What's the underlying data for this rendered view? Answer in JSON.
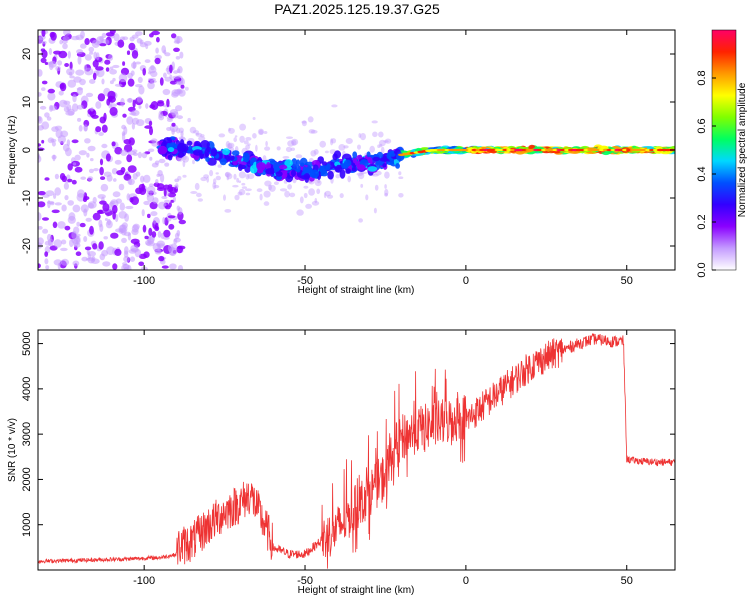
{
  "title": "PAZ1.2025.125.19.37.G25",
  "chart_data": [
    {
      "type": "heatmap",
      "xlabel": "Height of straight line (km)",
      "ylabel": "Frequency (Hz)",
      "xlim": [
        -133,
        65
      ],
      "ylim": [
        -25,
        25
      ],
      "xticks": [
        -100,
        -50,
        0,
        50
      ],
      "yticks": [
        20,
        10,
        0,
        -10,
        -20
      ],
      "colorbar": {
        "label": "Normalized spectral amplitude",
        "range": [
          0.0,
          1.0
        ],
        "ticks": [
          0.0,
          0.2,
          0.4,
          0.6,
          0.8
        ],
        "colors": [
          "#ffffff",
          "#c49bff",
          "#8a00ff",
          "#3300ff",
          "#0050ff",
          "#00d8ff",
          "#00ff60",
          "#80ff00",
          "#ffff00",
          "#ff9900",
          "#ff2200",
          "#ff0066"
        ]
      },
      "ridge": [
        {
          "x": -90,
          "f": 0.5
        },
        {
          "x": -80,
          "f": -0.5
        },
        {
          "x": -70,
          "f": -2.5
        },
        {
          "x": -60,
          "f": -4
        },
        {
          "x": -50,
          "f": -4.5
        },
        {
          "x": -40,
          "f": -3
        },
        {
          "x": -30,
          "f": -3
        },
        {
          "x": -20,
          "f": -1
        },
        {
          "x": -10,
          "f": 0
        },
        {
          "x": 0,
          "f": 0
        },
        {
          "x": 20,
          "f": 0
        },
        {
          "x": 40,
          "f": 0
        },
        {
          "x": 65,
          "f": 0
        }
      ]
    },
    {
      "type": "line",
      "xlabel": "Height of straight line (km)",
      "ylabel": "SNR (10 * v/v)",
      "xlim": [
        -133,
        65
      ],
      "ylim": [
        0,
        5300
      ],
      "xticks": [
        -100,
        -50,
        0,
        50
      ],
      "yticks": [
        1000,
        2000,
        3000,
        4000,
        5000
      ],
      "color": "#ee3333",
      "series": [
        {
          "x": [
            -133,
            -125,
            -115,
            -105,
            -95,
            -90,
            -85,
            -80,
            -75,
            -70,
            -67,
            -65,
            -60,
            -55,
            -50,
            -45,
            -40,
            -35,
            -30,
            -25,
            -22,
            -20,
            -15,
            -10,
            -5,
            0,
            5,
            10,
            15,
            20,
            25,
            30,
            35,
            40,
            45,
            49,
            50,
            52,
            55,
            60,
            65
          ],
          "y": [
            150,
            160,
            180,
            200,
            230,
            300,
            450,
            800,
            1100,
            1300,
            1500,
            1200,
            400,
            250,
            250,
            550,
            800,
            1200,
            1600,
            2000,
            2600,
            2800,
            3000,
            3100,
            3200,
            3300,
            3600,
            3900,
            4200,
            4500,
            4700,
            4850,
            5000,
            5100,
            5050,
            5050,
            2450,
            2420,
            2400,
            2380,
            2380
          ]
        }
      ]
    }
  ]
}
